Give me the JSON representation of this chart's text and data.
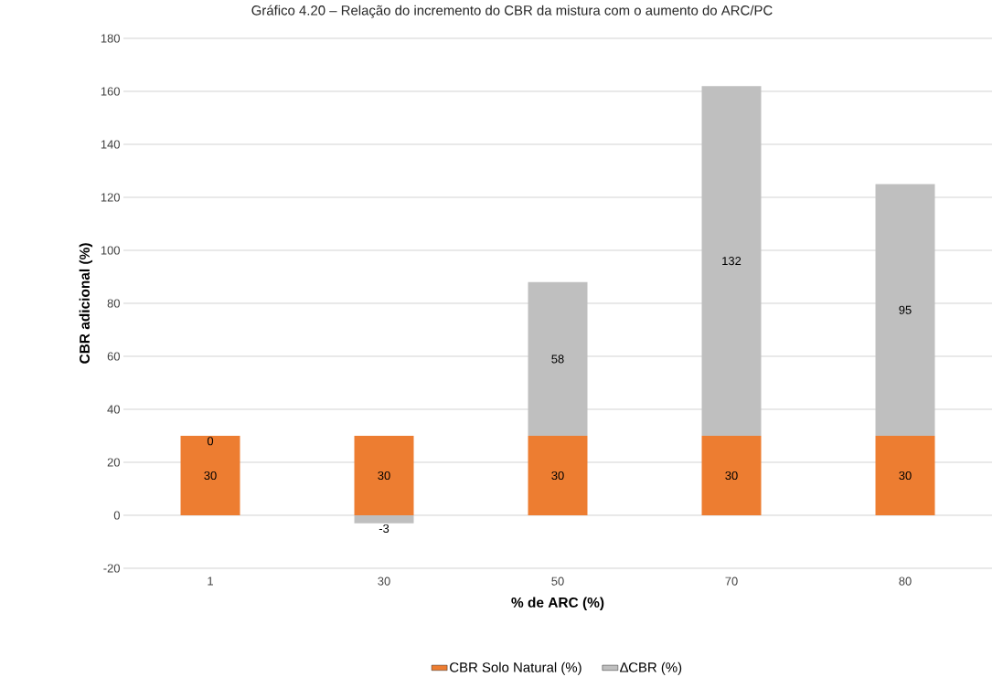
{
  "chart_data": {
    "type": "bar",
    "stacked": true,
    "title": "Gráfico 4.20 – Relação do incremento do CBR da mistura com o aumento do ARC/PC",
    "xlabel": "% de ARC (%)",
    "ylabel": "CBR adicional (%)",
    "categories": [
      "1",
      "30",
      "50",
      "70",
      "80"
    ],
    "series": [
      {
        "name": "CBR Solo Natural (%)",
        "color": "#ed7d31",
        "values": [
          30,
          30,
          30,
          30,
          30
        ]
      },
      {
        "name": "∆CBR (%)",
        "color": "#bfbfbf",
        "values": [
          0,
          -3,
          58,
          132,
          95
        ]
      }
    ],
    "ylim": [
      -20,
      180
    ],
    "yticks": [
      -20,
      0,
      20,
      40,
      60,
      80,
      100,
      120,
      140,
      160,
      180
    ],
    "grid": "y",
    "legend": "bottom",
    "data_labels": true
  }
}
